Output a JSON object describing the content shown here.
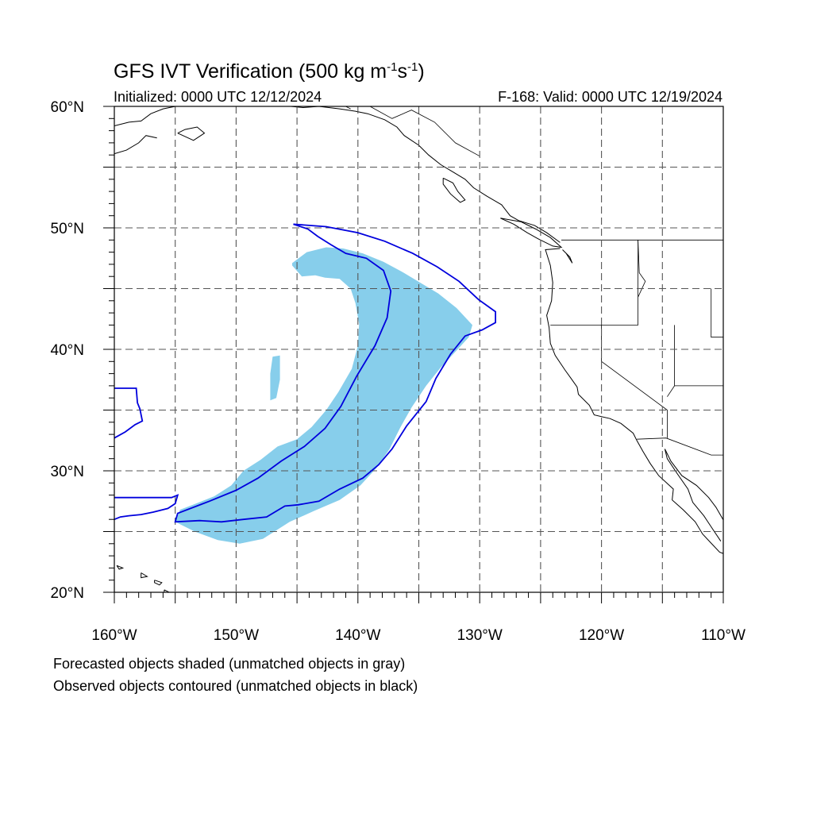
{
  "title": {
    "main": "GFS IVT Verification (500 kg m",
    "sup1": "-1",
    "mid": "s",
    "sup2": "-1",
    "close": ")"
  },
  "initialized": "Initialized: 0000 UTC 12/12/2024",
  "valid": "F-168: Valid: 0000 UTC 12/19/2024",
  "map_extent": {
    "lon": [
      -160,
      -110
    ],
    "lat": [
      20,
      60
    ]
  },
  "lat_ticks": [
    {
      "value": 60,
      "label": "60°N"
    },
    {
      "value": 50,
      "label": "50°N"
    },
    {
      "value": 40,
      "label": "40°N"
    },
    {
      "value": 30,
      "label": "30°N"
    },
    {
      "value": 20,
      "label": "20°N"
    }
  ],
  "lon_ticks": [
    {
      "value": -160,
      "label": "160°W"
    },
    {
      "value": -150,
      "label": "150°W"
    },
    {
      "value": -140,
      "label": "140°W"
    },
    {
      "value": -130,
      "label": "130°W"
    },
    {
      "value": -120,
      "label": "120°W"
    },
    {
      "value": -110,
      "label": "110°W"
    }
  ],
  "grid": {
    "enabled": true,
    "style": "dashed",
    "lon_step": 5,
    "lat_step": 5
  },
  "colors": {
    "forecast_fill": "#87ceeb",
    "observed_contour": "#0000dd",
    "coast": "#000000",
    "grid": "#555555"
  },
  "notes": [
    "Forecasted objects shaded (unmatched objects in gray)",
    "Observed objects contoured (unmatched objects in black)"
  ],
  "forecast_object": {
    "polygon": [
      [
        -145.4,
        47.1
      ],
      [
        -144.2,
        48.0
      ],
      [
        -142.6,
        48.4
      ],
      [
        -141.2,
        48.3
      ],
      [
        -139.6,
        47.9
      ],
      [
        -137.9,
        47.2
      ],
      [
        -136.4,
        46.4
      ],
      [
        -134.9,
        45.5
      ],
      [
        -133.4,
        44.6
      ],
      [
        -131.9,
        43.4
      ],
      [
        -130.6,
        42.0
      ],
      [
        -130.9,
        41.0
      ],
      [
        -132.0,
        39.8
      ],
      [
        -133.2,
        38.5
      ],
      [
        -134.4,
        37.0
      ],
      [
        -135.6,
        35.2
      ],
      [
        -136.5,
        33.6
      ],
      [
        -137.4,
        31.8
      ],
      [
        -138.5,
        30.2
      ],
      [
        -139.8,
        28.8
      ],
      [
        -141.5,
        27.6
      ],
      [
        -143.6,
        26.7
      ],
      [
        -145.6,
        25.8
      ],
      [
        -147.8,
        24.4
      ],
      [
        -149.7,
        24.0
      ],
      [
        -151.5,
        24.3
      ],
      [
        -153.4,
        25.0
      ],
      [
        -155.0,
        25.8
      ],
      [
        -154.6,
        26.8
      ],
      [
        -153.3,
        27.3
      ],
      [
        -151.8,
        27.9
      ],
      [
        -150.4,
        28.8
      ],
      [
        -149.4,
        30.0
      ],
      [
        -148.0,
        30.9
      ],
      [
        -146.6,
        32.0
      ],
      [
        -145.0,
        32.6
      ],
      [
        -143.8,
        33.6
      ],
      [
        -142.6,
        35.0
      ],
      [
        -141.6,
        36.5
      ],
      [
        -140.5,
        38.4
      ],
      [
        -140.0,
        40.3
      ],
      [
        -139.9,
        42.1
      ],
      [
        -140.2,
        43.8
      ],
      [
        -140.6,
        45.0
      ],
      [
        -141.5,
        45.8
      ],
      [
        -142.7,
        45.9
      ],
      [
        -143.5,
        46.1
      ],
      [
        -144.6,
        46.0
      ],
      [
        -145.4,
        46.9
      ],
      [
        -145.4,
        47.1
      ]
    ],
    "extra_polygon": [
      [
        -147.0,
        39.4
      ],
      [
        -146.4,
        39.5
      ],
      [
        -146.4,
        37.5
      ],
      [
        -146.7,
        36.0
      ],
      [
        -147.2,
        35.8
      ],
      [
        -147.2,
        38.0
      ],
      [
        -147.0,
        39.4
      ]
    ]
  },
  "observed_object": {
    "contour": [
      [
        -145.3,
        50.3
      ],
      [
        -142.6,
        50.1
      ],
      [
        -140.0,
        49.6
      ],
      [
        -137.8,
        48.9
      ],
      [
        -135.5,
        47.9
      ],
      [
        -133.5,
        46.8
      ],
      [
        -131.7,
        45.6
      ],
      [
        -130.1,
        44.1
      ],
      [
        -128.7,
        43.1
      ],
      [
        -128.7,
        42.2
      ],
      [
        -129.8,
        41.6
      ],
      [
        -131.2,
        41.1
      ],
      [
        -132.4,
        39.6
      ],
      [
        -133.6,
        37.6
      ],
      [
        -134.4,
        35.7
      ],
      [
        -136.0,
        33.7
      ],
      [
        -137.2,
        31.8
      ],
      [
        -138.3,
        30.5
      ],
      [
        -139.6,
        29.4
      ],
      [
        -141.5,
        28.5
      ],
      [
        -143.2,
        27.5
      ],
      [
        -144.9,
        27.2
      ],
      [
        -146.0,
        27.1
      ],
      [
        -147.5,
        26.2
      ],
      [
        -149.4,
        26.0
      ],
      [
        -151.2,
        25.8
      ],
      [
        -153.0,
        25.9
      ],
      [
        -155.0,
        25.8
      ],
      [
        -154.8,
        26.5
      ],
      [
        -152.2,
        27.5
      ],
      [
        -150.0,
        28.4
      ],
      [
        -148.2,
        29.4
      ],
      [
        -146.3,
        30.8
      ],
      [
        -144.4,
        32.0
      ],
      [
        -142.7,
        33.5
      ],
      [
        -141.4,
        35.3
      ],
      [
        -140.1,
        37.8
      ],
      [
        -138.6,
        40.3
      ],
      [
        -137.6,
        42.6
      ],
      [
        -137.3,
        44.8
      ],
      [
        -137.9,
        46.5
      ],
      [
        -139.3,
        47.5
      ],
      [
        -141.0,
        47.9
      ],
      [
        -142.2,
        48.6
      ],
      [
        -143.3,
        49.3
      ],
      [
        -144.1,
        49.9
      ],
      [
        -145.3,
        50.3
      ]
    ],
    "west_fragment_upper": [
      [
        -160,
        36.8
      ],
      [
        -158.2,
        36.8
      ],
      [
        -158.1,
        35.6
      ],
      [
        -157.9,
        35.1
      ],
      [
        -157.7,
        34.1
      ],
      [
        -158.3,
        33.8
      ],
      [
        -159.1,
        33.2
      ],
      [
        -160,
        32.7
      ]
    ],
    "west_fragment_lower": [
      [
        -160,
        27.8
      ],
      [
        -157.2,
        27.8
      ],
      [
        -155.3,
        27.8
      ],
      [
        -154.8,
        28.0
      ],
      [
        -155.0,
        27.3
      ],
      [
        -155.6,
        26.9
      ],
      [
        -156.8,
        26.6
      ],
      [
        -157.8,
        26.4
      ],
      [
        -158.8,
        26.3
      ],
      [
        -159.5,
        26.2
      ],
      [
        -160,
        26.0
      ]
    ]
  }
}
